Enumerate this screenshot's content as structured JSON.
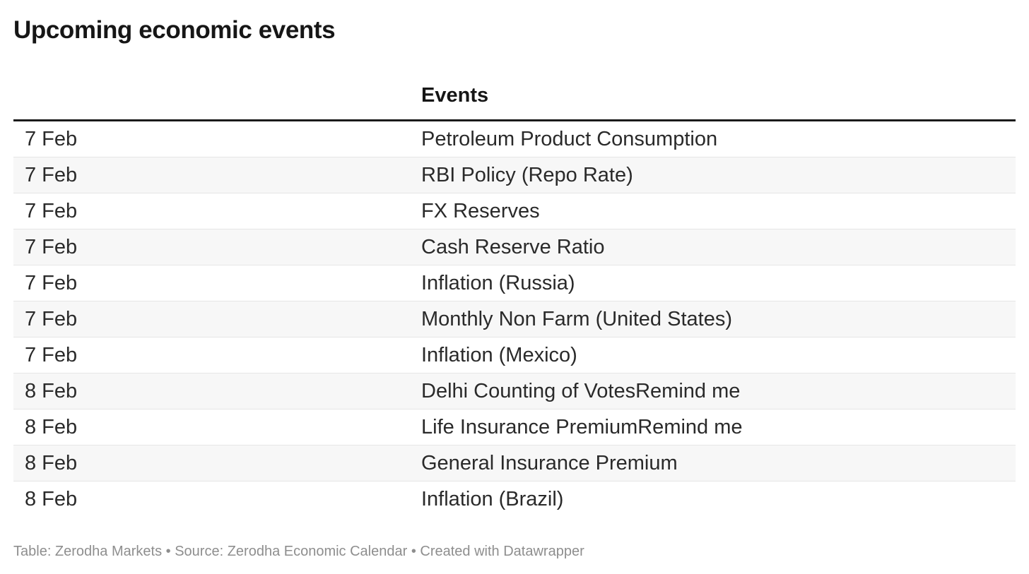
{
  "chart_data": {
    "type": "table",
    "title": "Upcoming economic events",
    "columns": [
      {
        "label": ""
      },
      {
        "label": "Events"
      }
    ],
    "rows": [
      {
        "date": "7 Feb",
        "event": "Petroleum Product Consumption"
      },
      {
        "date": "7 Feb",
        "event": "RBI Policy (Repo Rate)"
      },
      {
        "date": "7 Feb",
        "event": "FX Reserves"
      },
      {
        "date": "7 Feb",
        "event": "Cash Reserve Ratio"
      },
      {
        "date": "7 Feb",
        "event": "Inflation (Russia)"
      },
      {
        "date": "7 Feb",
        "event": "Monthly Non Farm (United States)"
      },
      {
        "date": "7 Feb",
        "event": "Inflation (Mexico)"
      },
      {
        "date": "8 Feb",
        "event": "Delhi Counting of VotesRemind me"
      },
      {
        "date": "8 Feb",
        "event": "Life Insurance PremiumRemind me"
      },
      {
        "date": "8 Feb",
        "event": "General Insurance Premium"
      },
      {
        "date": "8 Feb",
        "event": "Inflation (Brazil)"
      }
    ],
    "footer": "Table: Zerodha Markets • Source: Zerodha Economic Calendar • Created with Datawrapper",
    "layout_hints": {
      "striped_rows": true,
      "header_rule": "thick-black",
      "grid": "horizontal-only"
    }
  },
  "colors": {
    "title_text": "#161616",
    "text": "#2a2a2a",
    "header_rule": "#1a1a1a",
    "alt_row_bg": "#f7f7f7",
    "row_border": "#e6e6e6",
    "footer_text": "#8e8e8e"
  }
}
